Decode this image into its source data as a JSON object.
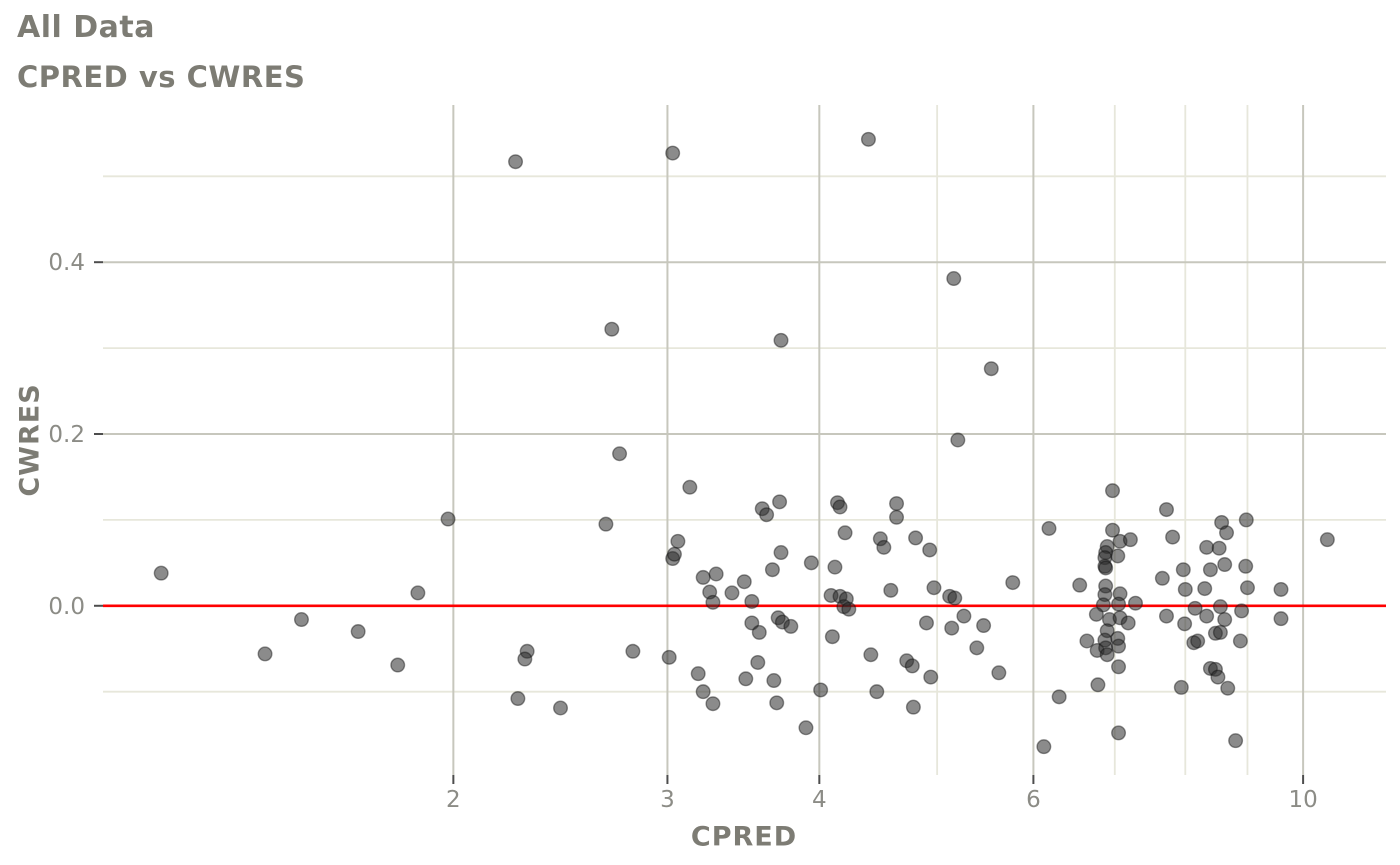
{
  "header": {
    "title": "All Data",
    "subtitle": "CPRED vs CWRES"
  },
  "colors": {
    "title_text": "#7d7c74",
    "axis_title_text": "#7d7c74",
    "tick_label_text": "#8c8c86",
    "grid_major": "#c7c7bd",
    "grid_minor": "#e7e7db",
    "tick_mark": "#4d4d4d",
    "reference_line": "#ff0000",
    "point_fill": "#2b2b2b",
    "background": "#ffffff"
  },
  "chart_data": {
    "type": "scatter",
    "title": "All Data",
    "subtitle": "CPRED vs CWRES",
    "xlabel": "CPRED",
    "ylabel": "CWRES",
    "x_scale": "log10",
    "xlim": [
      1.03,
      11.7
    ],
    "ylim": [
      -0.197,
      0.583
    ],
    "x_major_ticks": [
      2,
      3,
      4,
      6,
      10
    ],
    "x_tick_labels": [
      "2",
      "3",
      "4",
      "6",
      "10"
    ],
    "x_minor_gridlines": [
      5,
      7,
      8,
      9
    ],
    "y_major_ticks": [
      0.0,
      0.2,
      0.4
    ],
    "y_tick_labels": [
      "0.0",
      "0.2",
      "0.4"
    ],
    "y_minor_gridlines": [
      -0.1,
      0.1,
      0.3,
      0.5
    ],
    "reference_line_y": 0,
    "grid": "on",
    "legend": "none",
    "points": [
      [
        1.15,
        0.038
      ],
      [
        1.98,
        0.101
      ],
      [
        1.87,
        0.015
      ],
      [
        1.5,
        -0.016
      ],
      [
        1.67,
        -0.03
      ],
      [
        1.4,
        -0.056
      ],
      [
        1.8,
        -0.069
      ],
      [
        2.3,
        -0.053
      ],
      [
        2.29,
        -0.062
      ],
      [
        2.26,
        -0.108
      ],
      [
        2.25,
        0.517
      ],
      [
        3.03,
        0.527
      ],
      [
        4.39,
        0.543
      ],
      [
        5.16,
        0.381
      ],
      [
        2.7,
        0.322
      ],
      [
        3.72,
        0.309
      ],
      [
        5.54,
        0.276
      ],
      [
        5.2,
        0.193
      ],
      [
        2.74,
        0.177
      ],
      [
        3.13,
        0.138
      ],
      [
        3.59,
        0.113
      ],
      [
        3.62,
        0.106
      ],
      [
        3.71,
        0.121
      ],
      [
        4.14,
        0.12
      ],
      [
        4.16,
        0.115
      ],
      [
        2.67,
        0.095
      ],
      [
        4.63,
        0.119
      ],
      [
        4.63,
        0.103
      ],
      [
        4.2,
        0.085
      ],
      [
        3.06,
        0.075
      ],
      [
        4.49,
        0.078
      ],
      [
        4.52,
        0.068
      ],
      [
        4.8,
        0.079
      ],
      [
        3.03,
        0.055
      ],
      [
        3.04,
        0.06
      ],
      [
        4.93,
        0.065
      ],
      [
        3.72,
        0.062
      ],
      [
        3.94,
        0.05
      ],
      [
        3.21,
        0.033
      ],
      [
        3.29,
        0.037
      ],
      [
        3.66,
        0.042
      ],
      [
        4.12,
        0.045
      ],
      [
        3.47,
        0.028
      ],
      [
        4.58,
        0.018
      ],
      [
        3.25,
        0.016
      ],
      [
        3.27,
        0.004
      ],
      [
        3.39,
        0.015
      ],
      [
        4.09,
        0.012
      ],
      [
        4.16,
        0.011
      ],
      [
        4.21,
        0.008
      ],
      [
        4.19,
        -0.001
      ],
      [
        4.23,
        -0.004
      ],
      [
        3.52,
        0.005
      ],
      [
        3.7,
        -0.014
      ],
      [
        3.73,
        -0.019
      ],
      [
        3.52,
        -0.02
      ],
      [
        3.79,
        -0.024
      ],
      [
        3.57,
        -0.031
      ],
      [
        4.1,
        -0.036
      ],
      [
        2.81,
        -0.053
      ],
      [
        3.01,
        -0.06
      ],
      [
        3.56,
        -0.066
      ],
      [
        4.41,
        -0.057
      ],
      [
        4.72,
        -0.064
      ],
      [
        4.77,
        -0.07
      ],
      [
        3.18,
        -0.079
      ],
      [
        3.48,
        -0.085
      ],
      [
        3.67,
        -0.087
      ],
      [
        4.94,
        -0.083
      ],
      [
        4.01,
        -0.098
      ],
      [
        3.21,
        -0.1
      ],
      [
        4.46,
        -0.1
      ],
      [
        3.27,
        -0.114
      ],
      [
        3.69,
        -0.113
      ],
      [
        2.45,
        -0.119
      ],
      [
        4.78,
        -0.118
      ],
      [
        3.9,
        -0.142
      ],
      [
        4.97,
        0.021
      ],
      [
        4.9,
        -0.02
      ],
      [
        5.12,
        0.011
      ],
      [
        5.17,
        0.009
      ],
      [
        5.26,
        -0.012
      ],
      [
        5.14,
        -0.026
      ],
      [
        5.46,
        -0.023
      ],
      [
        5.39,
        -0.049
      ],
      [
        5.62,
        -0.078
      ],
      [
        5.77,
        0.027
      ],
      [
        6.97,
        0.134
      ],
      [
        7.72,
        0.112
      ],
      [
        6.18,
        0.09
      ],
      [
        8.57,
        0.097
      ],
      [
        8.65,
        0.085
      ],
      [
        8.98,
        0.1
      ],
      [
        6.97,
        0.088
      ],
      [
        6.9,
        0.069
      ],
      [
        7.07,
        0.075
      ],
      [
        7.21,
        0.077
      ],
      [
        7.81,
        0.08
      ],
      [
        10.47,
        0.077
      ],
      [
        6.88,
        0.062
      ],
      [
        6.87,
        0.056
      ],
      [
        7.04,
        0.058
      ],
      [
        6.87,
        0.046
      ],
      [
        6.88,
        0.044
      ],
      [
        6.55,
        0.024
      ],
      [
        6.88,
        0.023
      ],
      [
        6.87,
        0.013
      ],
      [
        7.07,
        0.014
      ],
      [
        6.85,
        0.001
      ],
      [
        7.05,
        0.002
      ],
      [
        7.28,
        0.003
      ],
      [
        6.76,
        -0.01
      ],
      [
        6.93,
        -0.016
      ],
      [
        7.07,
        -0.014
      ],
      [
        7.18,
        -0.02
      ],
      [
        6.9,
        -0.029
      ],
      [
        6.87,
        -0.04
      ],
      [
        7.04,
        -0.038
      ],
      [
        6.64,
        -0.041
      ],
      [
        6.77,
        -0.052
      ],
      [
        6.88,
        -0.049
      ],
      [
        7.05,
        -0.047
      ],
      [
        6.9,
        -0.057
      ],
      [
        7.05,
        -0.071
      ],
      [
        6.78,
        -0.092
      ],
      [
        7.66,
        0.032
      ],
      [
        7.97,
        0.042
      ],
      [
        8.39,
        0.042
      ],
      [
        8.62,
        0.048
      ],
      [
        8.97,
        0.046
      ],
      [
        8.33,
        0.068
      ],
      [
        8.53,
        0.067
      ],
      [
        8.0,
        0.019
      ],
      [
        8.3,
        0.02
      ],
      [
        9.0,
        0.021
      ],
      [
        9.59,
        0.019
      ],
      [
        8.15,
        -0.003
      ],
      [
        8.55,
        -0.001
      ],
      [
        8.9,
        -0.006
      ],
      [
        7.72,
        -0.012
      ],
      [
        8.33,
        -0.012
      ],
      [
        8.62,
        -0.016
      ],
      [
        7.99,
        -0.021
      ],
      [
        9.59,
        -0.015
      ],
      [
        8.47,
        -0.032
      ],
      [
        8.55,
        -0.031
      ],
      [
        8.88,
        -0.041
      ],
      [
        8.13,
        -0.043
      ],
      [
        8.19,
        -0.041
      ],
      [
        8.39,
        -0.073
      ],
      [
        8.47,
        -0.074
      ],
      [
        8.51,
        -0.083
      ],
      [
        7.94,
        -0.095
      ],
      [
        8.67,
        -0.096
      ],
      [
        6.3,
        -0.106
      ],
      [
        6.12,
        -0.164
      ],
      [
        7.05,
        -0.148
      ],
      [
        8.8,
        -0.157
      ]
    ]
  }
}
